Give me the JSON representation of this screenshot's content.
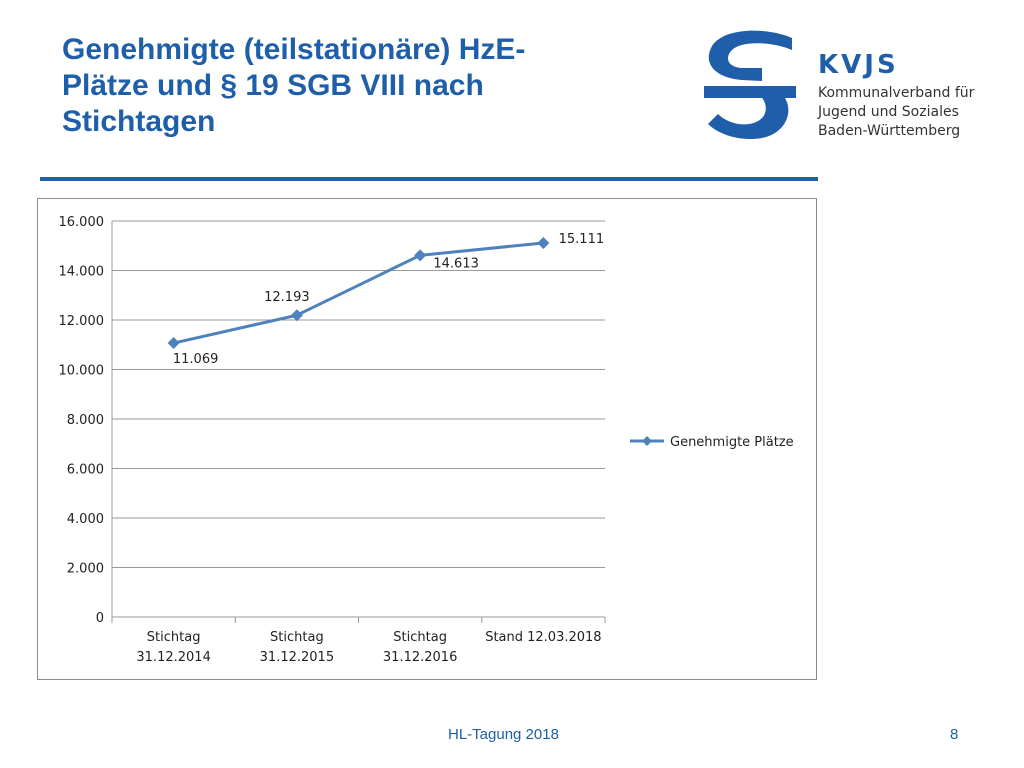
{
  "slide": {
    "title_lines": [
      "Genehmigte (teilstationäre) HzE-",
      "Plätze und § 19 SGB VIII nach",
      "Stichtagen"
    ],
    "footer": "HL-Tagung 2018",
    "page_number": "8"
  },
  "logo": {
    "name": "KVJS",
    "sub_lines": [
      "Kommunalverband für",
      "Jugend und Soziales",
      "Baden-Württemberg"
    ]
  },
  "colors": {
    "title": "#1f5ea8",
    "series": "#4f81bd",
    "grid": "#9a9a9a"
  },
  "chart_data": {
    "type": "line",
    "title": "",
    "xlabel": "",
    "ylabel": "",
    "categories": [
      [
        "Stichtag",
        "31.12.2014"
      ],
      [
        "Stichtag",
        "31.12.2015"
      ],
      [
        "Stichtag",
        "31.12.2016"
      ],
      [
        "Stand 12.03.2018"
      ]
    ],
    "series": [
      {
        "name": "Genehmigte Plätze",
        "values": [
          11069,
          12193,
          14613,
          15111
        ],
        "labels": [
          "11.069",
          "12.193",
          "14.613",
          "15.111"
        ]
      }
    ],
    "ylim": [
      0,
      16000
    ],
    "yticks": [
      0,
      2000,
      4000,
      6000,
      8000,
      10000,
      12000,
      14000,
      16000
    ],
    "ytick_labels": [
      "0",
      "2.000",
      "4.000",
      "6.000",
      "8.000",
      "10.000",
      "12.000",
      "14.000",
      "16.000"
    ],
    "grid": true,
    "legend": "right"
  }
}
